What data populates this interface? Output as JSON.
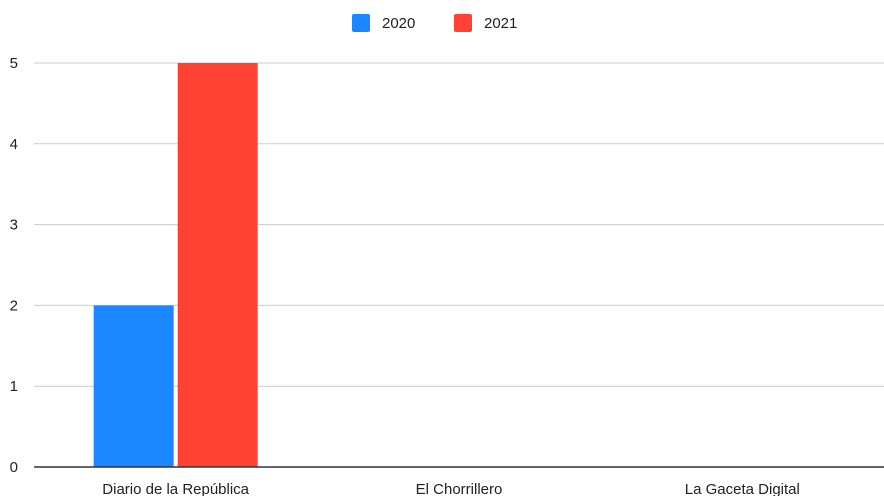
{
  "chart_data": {
    "type": "bar",
    "categories": [
      "Diario de la República",
      "El Chorrillero",
      "La Gaceta Digital"
    ],
    "series": [
      {
        "name": "2020",
        "values": [
          2,
          0,
          0
        ],
        "color": "#1a86ff"
      },
      {
        "name": "2021",
        "values": [
          5,
          0,
          0
        ],
        "color": "#ff4133"
      }
    ],
    "title": "",
    "xlabel": "",
    "ylabel": "",
    "ylim": [
      0,
      5
    ],
    "yticks": [
      0,
      1,
      2,
      3,
      4,
      5
    ],
    "grid": true,
    "legend": "top-center"
  }
}
